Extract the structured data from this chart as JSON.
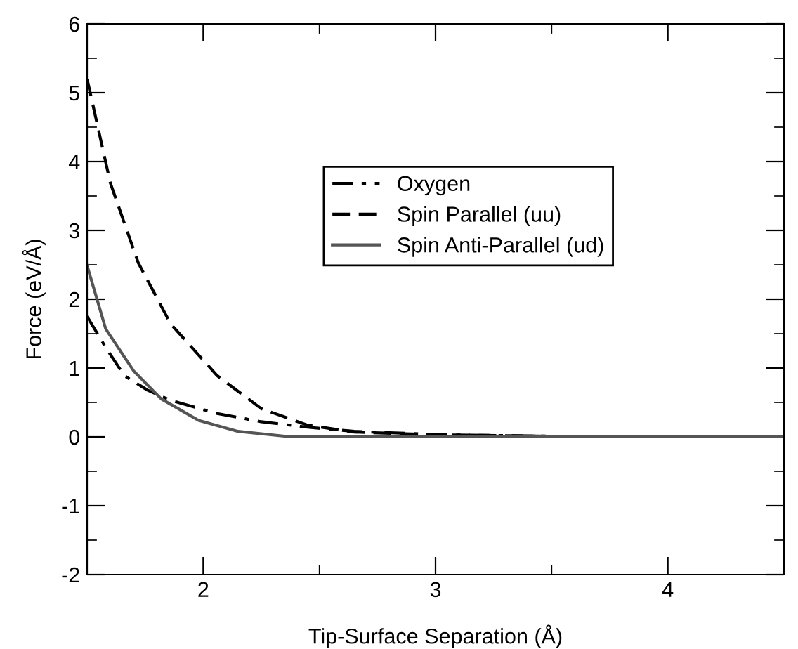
{
  "chart_data": {
    "type": "line",
    "xlabel": "Tip-Surface Separation (Å)",
    "ylabel": "Force (eV/Å)",
    "xlim": [
      1.5,
      4.5
    ],
    "xticks": [
      2,
      3,
      4
    ],
    "ylim": [
      -2,
      6
    ],
    "yticks": [
      -2,
      -1,
      0,
      1,
      2,
      3,
      4,
      5,
      6
    ],
    "grid": false,
    "legend": "top right",
    "marker": "none",
    "series": [
      {
        "name": "Oxygen",
        "color": "#000000",
        "line_style": "dashdot",
        "x": [
          1.5,
          1.58,
          1.66,
          1.76,
          1.86,
          2.06,
          2.25,
          2.45,
          2.65,
          3.05,
          3.5,
          4.0,
          4.5
        ],
        "values": [
          1.75,
          1.3,
          0.89,
          0.68,
          0.53,
          0.34,
          0.22,
          0.14,
          0.08,
          0.03,
          0.01,
          0.0,
          0.0
        ]
      },
      {
        "name": "Spin Parallel (uu)",
        "color": "#000000",
        "line_style": "dashed",
        "x": [
          1.5,
          1.6,
          1.72,
          1.86,
          2.06,
          2.25,
          2.45,
          2.65,
          3.0,
          3.5,
          4.0,
          4.5
        ],
        "values": [
          5.2,
          3.69,
          2.53,
          1.64,
          0.89,
          0.41,
          0.17,
          0.07,
          0.03,
          0.01,
          0.01,
          0.0
        ]
      },
      {
        "name": "Spin Anti-Parallel (ud)",
        "color": "#555555",
        "line_style": "solid",
        "x": [
          1.5,
          1.58,
          1.7,
          1.82,
          1.98,
          2.15,
          2.35,
          2.6,
          3.0,
          3.5,
          4.0,
          4.5
        ],
        "values": [
          2.49,
          1.57,
          0.96,
          0.55,
          0.24,
          0.08,
          0.01,
          0.0,
          0.0,
          0.0,
          0.0,
          0.0
        ]
      }
    ]
  }
}
